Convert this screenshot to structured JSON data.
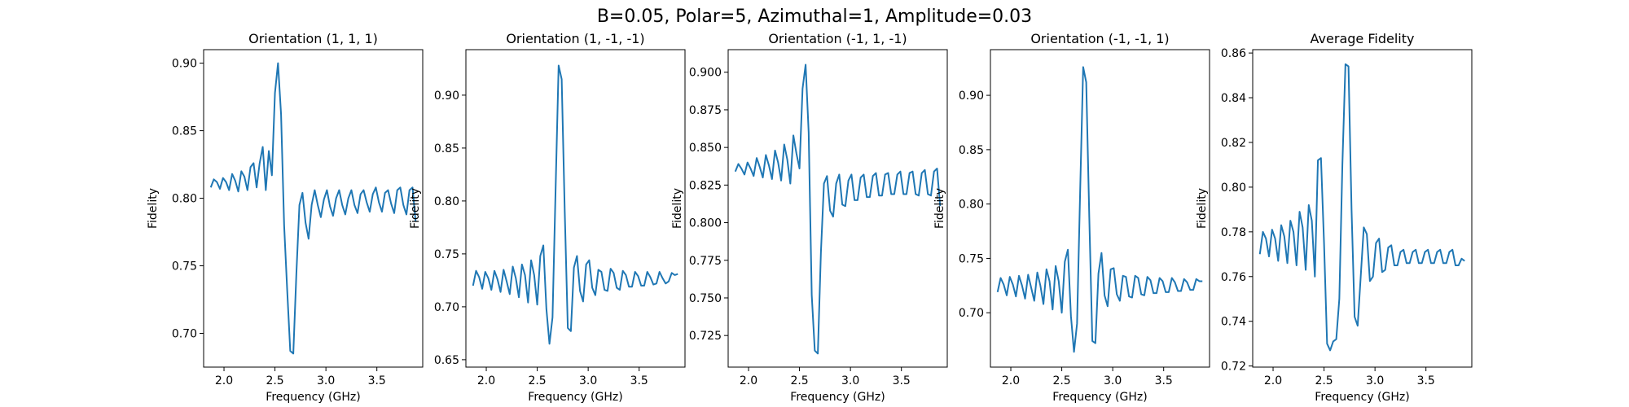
{
  "figure": {
    "suptitle": "B=0.05, Polar=5, Azimuthal=1, Amplitude=0.03"
  },
  "chart_data": [
    {
      "type": "line",
      "title": "Orientation (1, 1, 1)",
      "xlabel": "Frequency (GHz)",
      "ylabel": "Fidelity",
      "xlim": [
        1.8,
        3.95
      ],
      "ylim": [
        0.675,
        0.91
      ],
      "xticks": [
        2.0,
        2.5,
        3.0,
        3.5
      ],
      "xtick_labels": [
        "2.0",
        "2.5",
        "3.0",
        "3.5"
      ],
      "yticks": [
        0.7,
        0.75,
        0.8,
        0.85,
        0.9
      ],
      "ytick_labels": [
        "0.70",
        "0.75",
        "0.80",
        "0.85",
        "0.90"
      ],
      "color": "#1f77b4",
      "series": [
        {
          "x": [
            1.87,
            1.9,
            1.93,
            1.96,
            1.99,
            2.02,
            2.05,
            2.08,
            2.11,
            2.14,
            2.17,
            2.2,
            2.23,
            2.26,
            2.29,
            2.32,
            2.35,
            2.38,
            2.41,
            2.44,
            2.47,
            2.5,
            2.53,
            2.56,
            2.59,
            2.62,
            2.65,
            2.68,
            2.71,
            2.74,
            2.77,
            2.8,
            2.83,
            2.86,
            2.89,
            2.92,
            2.95,
            2.98,
            3.01,
            3.04,
            3.07,
            3.1,
            3.13,
            3.16,
            3.19,
            3.22,
            3.25,
            3.28,
            3.31,
            3.34,
            3.37,
            3.4,
            3.43,
            3.46,
            3.49,
            3.52,
            3.55,
            3.58,
            3.61,
            3.64,
            3.67,
            3.7,
            3.73,
            3.76,
            3.79,
            3.82,
            3.85,
            3.88
          ],
          "y": [
            0.808,
            0.814,
            0.812,
            0.807,
            0.815,
            0.812,
            0.806,
            0.818,
            0.813,
            0.805,
            0.82,
            0.816,
            0.806,
            0.823,
            0.826,
            0.808,
            0.826,
            0.838,
            0.806,
            0.835,
            0.817,
            0.878,
            0.9,
            0.862,
            0.78,
            0.732,
            0.687,
            0.685,
            0.744,
            0.795,
            0.804,
            0.782,
            0.77,
            0.795,
            0.806,
            0.795,
            0.786,
            0.799,
            0.806,
            0.794,
            0.787,
            0.8,
            0.806,
            0.795,
            0.788,
            0.8,
            0.806,
            0.795,
            0.789,
            0.803,
            0.806,
            0.797,
            0.79,
            0.803,
            0.808,
            0.797,
            0.79,
            0.804,
            0.806,
            0.796,
            0.789,
            0.806,
            0.808,
            0.795,
            0.788,
            0.806,
            0.808,
            0.783
          ]
        }
      ]
    },
    {
      "type": "line",
      "title": "Orientation (1, -1, -1)",
      "xlabel": "Frequency (GHz)",
      "ylabel": "Fidelity",
      "xlim": [
        1.8,
        3.95
      ],
      "ylim": [
        0.643,
        0.943
      ],
      "xticks": [
        2.0,
        2.5,
        3.0,
        3.5
      ],
      "xtick_labels": [
        "2.0",
        "2.5",
        "3.0",
        "3.5"
      ],
      "yticks": [
        0.65,
        0.7,
        0.75,
        0.8,
        0.85,
        0.9
      ],
      "ytick_labels": [
        "0.65",
        "0.70",
        "0.75",
        "0.80",
        "0.85",
        "0.90"
      ],
      "color": "#1f77b4",
      "series": [
        {
          "x": [
            1.87,
            1.9,
            1.93,
            1.96,
            1.99,
            2.02,
            2.05,
            2.08,
            2.11,
            2.14,
            2.17,
            2.2,
            2.23,
            2.26,
            2.29,
            2.32,
            2.35,
            2.38,
            2.41,
            2.44,
            2.47,
            2.5,
            2.53,
            2.56,
            2.59,
            2.62,
            2.65,
            2.68,
            2.71,
            2.74,
            2.77,
            2.8,
            2.83,
            2.86,
            2.89,
            2.92,
            2.95,
            2.98,
            3.01,
            3.04,
            3.07,
            3.1,
            3.13,
            3.16,
            3.19,
            3.22,
            3.25,
            3.28,
            3.31,
            3.34,
            3.37,
            3.4,
            3.43,
            3.46,
            3.49,
            3.52,
            3.55,
            3.58,
            3.61,
            3.64,
            3.67,
            3.7,
            3.73,
            3.76,
            3.79,
            3.82,
            3.85,
            3.88
          ],
          "y": [
            0.72,
            0.734,
            0.728,
            0.717,
            0.733,
            0.727,
            0.716,
            0.734,
            0.726,
            0.714,
            0.735,
            0.724,
            0.712,
            0.738,
            0.727,
            0.709,
            0.74,
            0.73,
            0.704,
            0.744,
            0.73,
            0.702,
            0.748,
            0.758,
            0.698,
            0.665,
            0.69,
            0.81,
            0.928,
            0.915,
            0.79,
            0.68,
            0.677,
            0.737,
            0.748,
            0.715,
            0.705,
            0.74,
            0.744,
            0.718,
            0.711,
            0.735,
            0.733,
            0.716,
            0.715,
            0.736,
            0.732,
            0.718,
            0.716,
            0.734,
            0.73,
            0.719,
            0.719,
            0.733,
            0.729,
            0.72,
            0.72,
            0.733,
            0.728,
            0.721,
            0.722,
            0.733,
            0.727,
            0.722,
            0.724,
            0.732,
            0.73,
            0.731
          ]
        }
      ]
    },
    {
      "type": "line",
      "title": "Orientation (-1, 1, -1)",
      "xlabel": "Frequency (GHz)",
      "ylabel": "Fidelity",
      "xlim": [
        1.8,
        3.95
      ],
      "ylim": [
        0.704,
        0.915
      ],
      "xticks": [
        2.0,
        2.5,
        3.0,
        3.5
      ],
      "xtick_labels": [
        "2.0",
        "2.5",
        "3.0",
        "3.5"
      ],
      "yticks": [
        0.725,
        0.75,
        0.775,
        0.8,
        0.825,
        0.85,
        0.875,
        0.9
      ],
      "ytick_labels": [
        "0.725",
        "0.750",
        "0.775",
        "0.800",
        "0.825",
        "0.850",
        "0.875",
        "0.900"
      ],
      "color": "#1f77b4",
      "series": [
        {
          "x": [
            1.87,
            1.9,
            1.93,
            1.96,
            1.99,
            2.02,
            2.05,
            2.08,
            2.11,
            2.14,
            2.17,
            2.2,
            2.23,
            2.26,
            2.29,
            2.32,
            2.35,
            2.38,
            2.41,
            2.44,
            2.47,
            2.5,
            2.53,
            2.56,
            2.59,
            2.62,
            2.65,
            2.68,
            2.71,
            2.74,
            2.77,
            2.8,
            2.83,
            2.86,
            2.89,
            2.92,
            2.95,
            2.98,
            3.01,
            3.04,
            3.07,
            3.1,
            3.13,
            3.16,
            3.19,
            3.22,
            3.25,
            3.28,
            3.31,
            3.34,
            3.37,
            3.4,
            3.43,
            3.46,
            3.49,
            3.52,
            3.55,
            3.58,
            3.61,
            3.64,
            3.67,
            3.7,
            3.73,
            3.76,
            3.79,
            3.82,
            3.85,
            3.88
          ],
          "y": [
            0.834,
            0.839,
            0.836,
            0.832,
            0.84,
            0.836,
            0.831,
            0.843,
            0.837,
            0.83,
            0.845,
            0.838,
            0.829,
            0.848,
            0.84,
            0.828,
            0.852,
            0.842,
            0.826,
            0.858,
            0.846,
            0.836,
            0.889,
            0.905,
            0.86,
            0.752,
            0.715,
            0.713,
            0.78,
            0.826,
            0.831,
            0.808,
            0.804,
            0.826,
            0.832,
            0.812,
            0.811,
            0.828,
            0.832,
            0.815,
            0.815,
            0.83,
            0.832,
            0.817,
            0.817,
            0.831,
            0.833,
            0.818,
            0.818,
            0.832,
            0.833,
            0.819,
            0.819,
            0.832,
            0.834,
            0.819,
            0.819,
            0.833,
            0.834,
            0.819,
            0.818,
            0.833,
            0.835,
            0.819,
            0.818,
            0.834,
            0.836,
            0.811
          ]
        }
      ]
    },
    {
      "type": "line",
      "title": "Orientation (-1, -1, 1)",
      "xlabel": "Frequency (GHz)",
      "ylabel": "Fidelity",
      "xlim": [
        1.8,
        3.95
      ],
      "ylim": [
        0.65,
        0.942
      ],
      "xticks": [
        2.0,
        2.5,
        3.0,
        3.5
      ],
      "xtick_labels": [
        "2.0",
        "2.5",
        "3.0",
        "3.5"
      ],
      "yticks": [
        0.7,
        0.75,
        0.8,
        0.85,
        0.9
      ],
      "ytick_labels": [
        "0.70",
        "0.75",
        "0.80",
        "0.85",
        "0.90"
      ],
      "color": "#1f77b4",
      "series": [
        {
          "x": [
            1.87,
            1.9,
            1.93,
            1.96,
            1.99,
            2.02,
            2.05,
            2.08,
            2.11,
            2.14,
            2.17,
            2.2,
            2.23,
            2.26,
            2.29,
            2.32,
            2.35,
            2.38,
            2.41,
            2.44,
            2.47,
            2.5,
            2.53,
            2.56,
            2.59,
            2.62,
            2.65,
            2.68,
            2.71,
            2.74,
            2.77,
            2.8,
            2.83,
            2.86,
            2.89,
            2.92,
            2.95,
            2.98,
            3.01,
            3.04,
            3.07,
            3.1,
            3.13,
            3.16,
            3.19,
            3.22,
            3.25,
            3.28,
            3.31,
            3.34,
            3.37,
            3.4,
            3.43,
            3.46,
            3.49,
            3.52,
            3.55,
            3.58,
            3.61,
            3.64,
            3.67,
            3.7,
            3.73,
            3.76,
            3.79,
            3.82,
            3.85,
            3.88
          ],
          "y": [
            0.719,
            0.732,
            0.726,
            0.716,
            0.733,
            0.726,
            0.715,
            0.734,
            0.725,
            0.713,
            0.735,
            0.723,
            0.711,
            0.737,
            0.725,
            0.708,
            0.74,
            0.729,
            0.703,
            0.743,
            0.729,
            0.7,
            0.747,
            0.758,
            0.697,
            0.664,
            0.69,
            0.81,
            0.926,
            0.912,
            0.788,
            0.674,
            0.672,
            0.736,
            0.755,
            0.716,
            0.706,
            0.74,
            0.741,
            0.717,
            0.711,
            0.734,
            0.733,
            0.715,
            0.714,
            0.734,
            0.732,
            0.717,
            0.716,
            0.733,
            0.73,
            0.718,
            0.718,
            0.732,
            0.729,
            0.719,
            0.719,
            0.732,
            0.728,
            0.72,
            0.72,
            0.731,
            0.728,
            0.721,
            0.721,
            0.731,
            0.729,
            0.729
          ]
        }
      ]
    },
    {
      "type": "line",
      "title": "Average Fidelity",
      "xlabel": "Frequency (GHz)",
      "ylabel": "Fidelity",
      "xlim": [
        1.8,
        3.95
      ],
      "ylim": [
        0.7195,
        0.8615
      ],
      "xticks": [
        2.0,
        2.5,
        3.0,
        3.5
      ],
      "xtick_labels": [
        "2.0",
        "2.5",
        "3.0",
        "3.5"
      ],
      "yticks": [
        0.72,
        0.74,
        0.76,
        0.78,
        0.8,
        0.82,
        0.84,
        0.86
      ],
      "ytick_labels": [
        "0.72",
        "0.74",
        "0.76",
        "0.78",
        "0.80",
        "0.82",
        "0.84",
        "0.86"
      ],
      "color": "#1f77b4",
      "series": [
        {
          "x": [
            1.87,
            1.9,
            1.93,
            1.96,
            1.99,
            2.02,
            2.05,
            2.08,
            2.11,
            2.14,
            2.17,
            2.2,
            2.23,
            2.26,
            2.29,
            2.32,
            2.35,
            2.38,
            2.41,
            2.44,
            2.47,
            2.5,
            2.53,
            2.56,
            2.59,
            2.62,
            2.65,
            2.68,
            2.71,
            2.74,
            2.77,
            2.8,
            2.83,
            2.86,
            2.89,
            2.92,
            2.95,
            2.98,
            3.01,
            3.04,
            3.07,
            3.1,
            3.13,
            3.16,
            3.19,
            3.22,
            3.25,
            3.28,
            3.31,
            3.34,
            3.37,
            3.4,
            3.43,
            3.46,
            3.49,
            3.52,
            3.55,
            3.58,
            3.61,
            3.64,
            3.67,
            3.7,
            3.73,
            3.76,
            3.79,
            3.82,
            3.85,
            3.88
          ],
          "y": [
            0.77,
            0.78,
            0.777,
            0.769,
            0.781,
            0.777,
            0.767,
            0.783,
            0.778,
            0.766,
            0.785,
            0.78,
            0.765,
            0.789,
            0.782,
            0.763,
            0.792,
            0.785,
            0.76,
            0.812,
            0.813,
            0.775,
            0.73,
            0.727,
            0.731,
            0.732,
            0.75,
            0.81,
            0.855,
            0.854,
            0.79,
            0.742,
            0.738,
            0.76,
            0.782,
            0.779,
            0.758,
            0.76,
            0.775,
            0.777,
            0.762,
            0.763,
            0.773,
            0.774,
            0.765,
            0.765,
            0.771,
            0.772,
            0.766,
            0.766,
            0.771,
            0.772,
            0.766,
            0.766,
            0.771,
            0.772,
            0.766,
            0.766,
            0.771,
            0.772,
            0.766,
            0.766,
            0.771,
            0.772,
            0.765,
            0.765,
            0.768,
            0.767
          ]
        }
      ]
    }
  ]
}
